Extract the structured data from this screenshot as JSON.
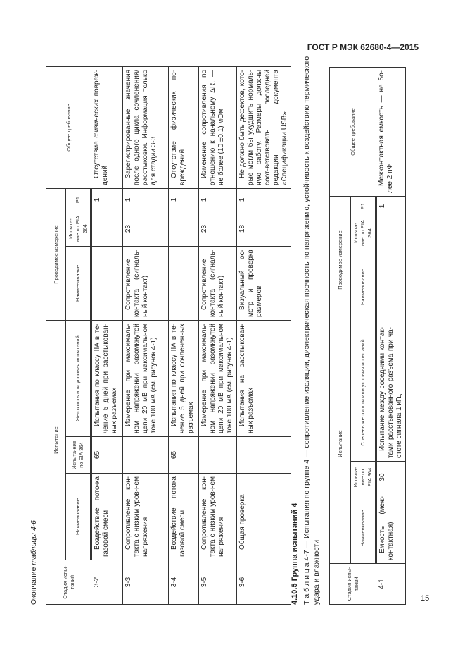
{
  "header": {
    "doc_id": "ГОСТ Р МЭК 62680-4—2015"
  },
  "page_number": "15",
  "table46": {
    "caption_prefix": "Окончание",
    "caption_italic": "таблицы 4-6",
    "headers": {
      "stage": "Стадия испы-таний",
      "test_group": "Испытание",
      "measure_group": "Проводимое измерение",
      "test_name": "Наименование",
      "test_eia": "Испыта-ние по EIA 364",
      "test_severity": "Жесткость или условия испытаний",
      "meas_name": "Наименование",
      "meas_eia": "Испыта-ние по EIA 364",
      "meas_p1": "P1",
      "requirement": "Общее требование"
    },
    "rows": [
      {
        "stage": "3-2",
        "name": "Воздействие пото-ка газовой смеси",
        "eia": "65",
        "severity": "Испытания по классу IIA в те-чение 5 дней при расстыкован-ных разъемах",
        "meas_name": "",
        "meas_eia": "",
        "p1": "1",
        "req": "Отсутствие физических повреж-дений"
      },
      {
        "stage": "3-3",
        "name": "Сопротивление кон-такта с низким уров-нем напряжения",
        "eia": "",
        "severity": "Измерение при максималь-ном напряжении разомкнутой цепи 20 мВ при максимальном токе 100 мА (см. рисунок 4-1)",
        "meas_name": "Сопротивление контакта (сигналь-ный контакт)",
        "meas_eia": "23",
        "p1": "1",
        "req": "Зарегистрированные значения после одного цикла сочленения/расстыковки. Информация только для стадии 3-3"
      },
      {
        "stage": "3-4",
        "name": "Воздействие потока газовой смеси",
        "eia": "65",
        "severity": "Испытания по классу IIA в те-чение 5 дней при сочлененных разъемах",
        "meas_name": "",
        "meas_eia": "",
        "p1": "1",
        "req": "Отсутствие физических по-вреждений"
      },
      {
        "stage": "3-5",
        "name": "Сопротивление кон-такта с низким уров-нем напряжения",
        "eia": "",
        "severity": "Измерение при максималь-ном напряжении разомкнутой цепи 20 мВ при максимальном токе 100 мА (см. рисунок 4-1)",
        "meas_name": "Сопротивление контакта (сигналь-ный контакт)",
        "meas_eia": "23",
        "p1": "1",
        "req": "Изменение сопротивления по отношению к начальному ΔR, — не более (10 ±0,1) мОм"
      },
      {
        "stage": "3-6",
        "name": "Общая проверка",
        "eia": "",
        "severity": "Испытания на расстыкован-ных разъемах",
        "meas_name": "Визуальный ос-мотр и проверка размеров",
        "meas_eia": "18",
        "p1": "1",
        "req": "Не должно быть дефектов, кото-рые могли бы ухудшить нормаль-ную работу. Размеры должны соот-ветствовать последней редакции документа «Спецификации USB»"
      }
    ]
  },
  "section": {
    "heading": "4.10.5 Группа испытаний 4"
  },
  "table47": {
    "caption_line1": "Т а б л и ц а  4-7 — Испытания по группе 4 — сопротивление изоляции, диэлектрическая прочность по напряжению, устойчивость к воздействию термического",
    "caption_line2": "удара и влажности",
    "headers": {
      "stage": "Стадия испы-таний",
      "test_group": "Испытание",
      "measure_group": "Проводимое измерение",
      "test_name": "Наименование",
      "test_eia": "Испыта-ние по EIA 364",
      "test_severity": "Степень жесткости или условия испытаний",
      "meas_name": "Наименование",
      "meas_eia": "Испыта-ние по EIA 364",
      "meas_p1": "P1",
      "requirement": "Общее требование"
    },
    "rows": [
      {
        "stage": "4-1",
        "name": "Емкость (меж-контактная)",
        "eia": "30",
        "severity": "Испытание между соседними контак-тами расстыкованного разъема при ча-стоте сигнала 1 кГц",
        "meas_name": "",
        "meas_eia": "",
        "p1": "1",
        "req": "Межконтактная емкость — не бо-лее 2 пФ"
      }
    ]
  }
}
